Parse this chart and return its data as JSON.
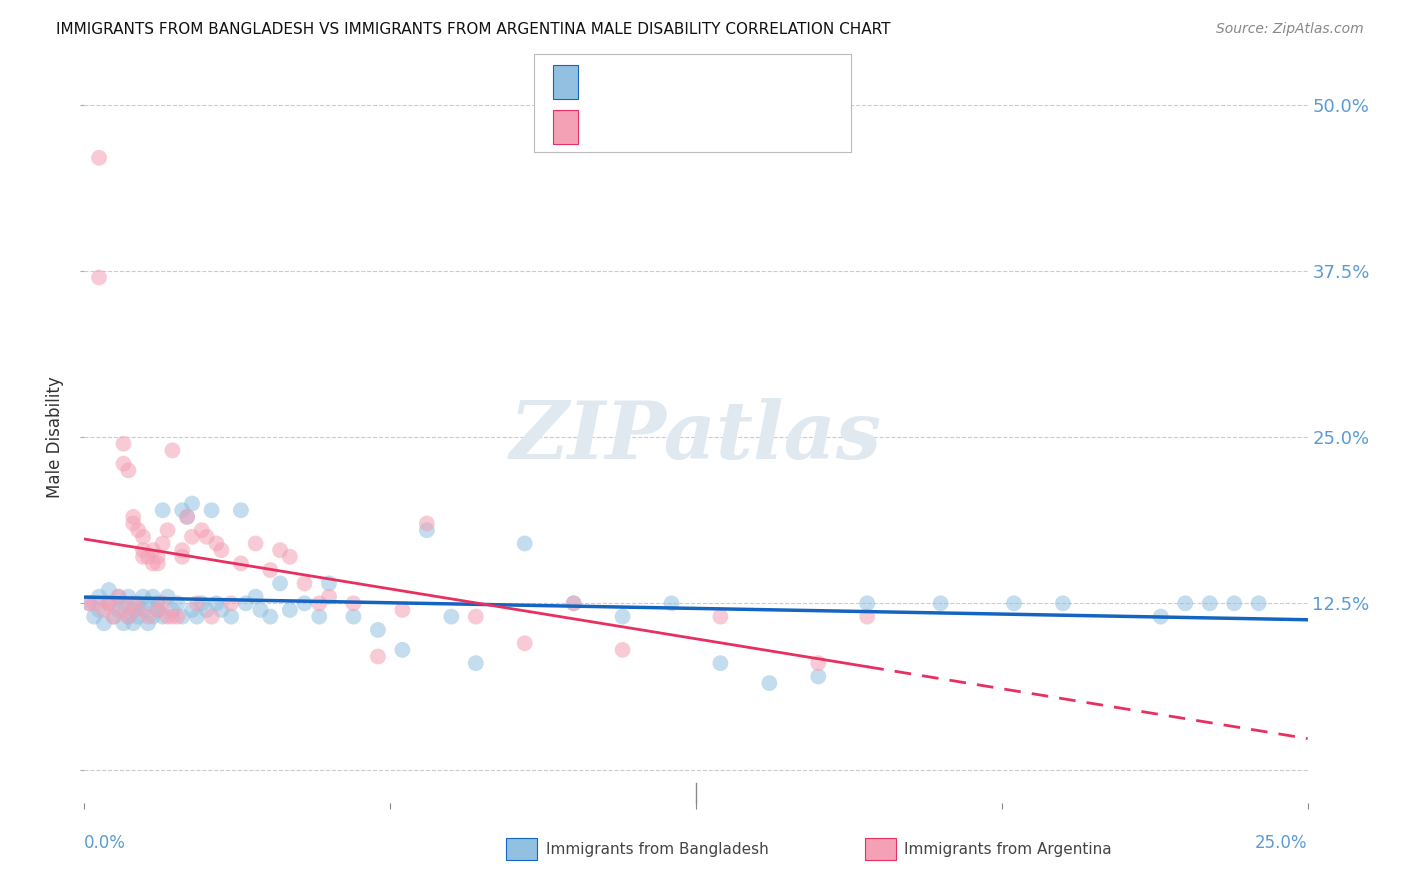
{
  "title": "IMMIGRANTS FROM BANGLADESH VS IMMIGRANTS FROM ARGENTINA MALE DISABILITY CORRELATION CHART",
  "source": "Source: ZipAtlas.com",
  "ylabel": "Male Disability",
  "yticks": [
    0.0,
    0.125,
    0.25,
    0.375,
    0.5
  ],
  "ytick_labels": [
    "",
    "12.5%",
    "25.0%",
    "37.5%",
    "50.0%"
  ],
  "xlim": [
    0.0,
    0.25
  ],
  "ylim": [
    -0.025,
    0.525
  ],
  "color_bangladesh": "#92C0E0",
  "color_argentina": "#F4A0B5",
  "color_trendline_bangladesh": "#1565C0",
  "color_trendline_argentina": "#E83060",
  "color_axis_labels": "#5B9BD5",
  "color_title": "#111111",
  "background_color": "#FFFFFF",
  "gridline_color": "#CCCCCC",
  "bangladesh_x": [
    0.001,
    0.002,
    0.003,
    0.003,
    0.004,
    0.005,
    0.005,
    0.006,
    0.007,
    0.007,
    0.008,
    0.008,
    0.009,
    0.009,
    0.01,
    0.01,
    0.011,
    0.011,
    0.012,
    0.012,
    0.013,
    0.013,
    0.014,
    0.014,
    0.015,
    0.015,
    0.016,
    0.016,
    0.017,
    0.018,
    0.019,
    0.02,
    0.02,
    0.021,
    0.022,
    0.022,
    0.023,
    0.024,
    0.025,
    0.026,
    0.027,
    0.028,
    0.03,
    0.032,
    0.033,
    0.035,
    0.036,
    0.038,
    0.04,
    0.042,
    0.045,
    0.048,
    0.05,
    0.055,
    0.06,
    0.065,
    0.07,
    0.075,
    0.08,
    0.09,
    0.1,
    0.11,
    0.12,
    0.13,
    0.14,
    0.15,
    0.16,
    0.175,
    0.19,
    0.2,
    0.22,
    0.225,
    0.23,
    0.235,
    0.24
  ],
  "bangladesh_y": [
    0.125,
    0.115,
    0.12,
    0.13,
    0.11,
    0.125,
    0.135,
    0.115,
    0.12,
    0.13,
    0.11,
    0.125,
    0.115,
    0.13,
    0.12,
    0.11,
    0.125,
    0.115,
    0.13,
    0.12,
    0.11,
    0.125,
    0.115,
    0.13,
    0.12,
    0.125,
    0.195,
    0.115,
    0.13,
    0.12,
    0.125,
    0.195,
    0.115,
    0.19,
    0.12,
    0.2,
    0.115,
    0.125,
    0.12,
    0.195,
    0.125,
    0.12,
    0.115,
    0.195,
    0.125,
    0.13,
    0.12,
    0.115,
    0.14,
    0.12,
    0.125,
    0.115,
    0.14,
    0.115,
    0.105,
    0.09,
    0.18,
    0.115,
    0.08,
    0.17,
    0.125,
    0.115,
    0.125,
    0.08,
    0.065,
    0.07,
    0.125,
    0.125,
    0.125,
    0.125,
    0.115,
    0.125,
    0.125,
    0.125,
    0.125
  ],
  "argentina_x": [
    0.001,
    0.002,
    0.003,
    0.004,
    0.005,
    0.006,
    0.007,
    0.008,
    0.008,
    0.009,
    0.009,
    0.01,
    0.01,
    0.011,
    0.011,
    0.012,
    0.012,
    0.013,
    0.013,
    0.014,
    0.014,
    0.015,
    0.015,
    0.016,
    0.016,
    0.017,
    0.017,
    0.018,
    0.018,
    0.019,
    0.02,
    0.02,
    0.021,
    0.022,
    0.023,
    0.024,
    0.025,
    0.026,
    0.027,
    0.028,
    0.03,
    0.032,
    0.035,
    0.038,
    0.04,
    0.042,
    0.045,
    0.048,
    0.05,
    0.055,
    0.06,
    0.065,
    0.07,
    0.08,
    0.09,
    0.1,
    0.11,
    0.13,
    0.15,
    0.16,
    0.003,
    0.005,
    0.008,
    0.01,
    0.012,
    0.015
  ],
  "argentina_y": [
    0.125,
    0.125,
    0.46,
    0.12,
    0.125,
    0.115,
    0.13,
    0.12,
    0.245,
    0.115,
    0.225,
    0.125,
    0.19,
    0.12,
    0.18,
    0.175,
    0.165,
    0.16,
    0.115,
    0.155,
    0.165,
    0.16,
    0.12,
    0.125,
    0.17,
    0.115,
    0.18,
    0.115,
    0.24,
    0.115,
    0.165,
    0.16,
    0.19,
    0.175,
    0.125,
    0.18,
    0.175,
    0.115,
    0.17,
    0.165,
    0.125,
    0.155,
    0.17,
    0.15,
    0.165,
    0.16,
    0.14,
    0.125,
    0.13,
    0.125,
    0.085,
    0.12,
    0.185,
    0.115,
    0.095,
    0.125,
    0.09,
    0.115,
    0.08,
    0.115,
    0.37,
    0.125,
    0.23,
    0.185,
    0.16,
    0.155
  ]
}
